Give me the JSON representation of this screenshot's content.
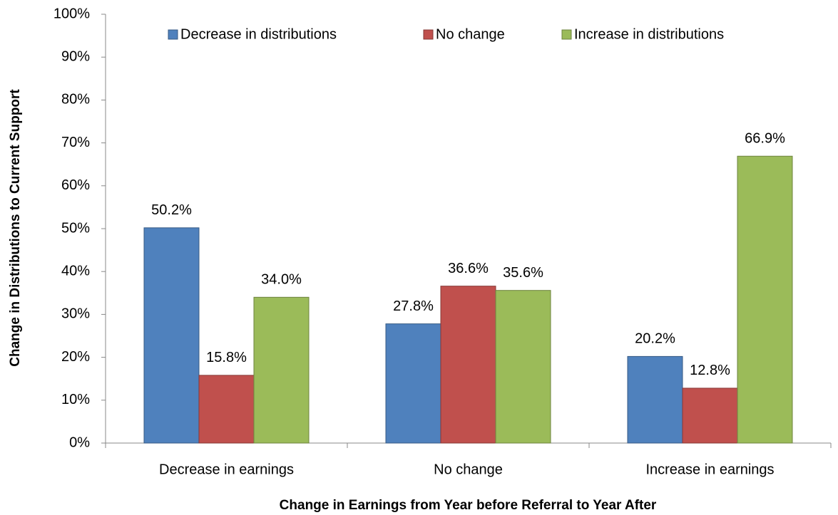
{
  "chart_data": {
    "type": "bar",
    "y_axis_label": "Change in Distributions to Current Support",
    "x_axis_label": "Change in Earnings from Year before Referral to Year After",
    "categories": [
      "Decrease in earnings",
      "No change",
      "Increase in earnings"
    ],
    "series": [
      {
        "name": "Decrease in distributions",
        "color": "#4f81bd",
        "values": [
          50.2,
          27.8,
          20.2
        ],
        "value_labels": [
          "50.2%",
          "27.8%",
          "20.2%"
        ]
      },
      {
        "name": "No change",
        "color": "#c0504d",
        "values": [
          15.8,
          36.6,
          12.8
        ],
        "value_labels": [
          "15.8%",
          "36.6%",
          "12.8%"
        ]
      },
      {
        "name": "Increase in distributions",
        "color": "#9bbb59",
        "values": [
          34.0,
          35.6,
          66.9
        ],
        "value_labels": [
          "34.0%",
          "35.6%",
          "66.9%"
        ]
      }
    ],
    "ylim": [
      0,
      100
    ],
    "yticks": [
      {
        "value": 0,
        "label": "0%"
      },
      {
        "value": 10,
        "label": "10%"
      },
      {
        "value": 20,
        "label": "20%"
      },
      {
        "value": 30,
        "label": "30%"
      },
      {
        "value": 40,
        "label": "40%"
      },
      {
        "value": 50,
        "label": "50%"
      },
      {
        "value": 60,
        "label": "60%"
      },
      {
        "value": 70,
        "label": "70%"
      },
      {
        "value": 80,
        "label": "80%"
      },
      {
        "value": 90,
        "label": "90%"
      },
      {
        "value": 100,
        "label": "100%"
      }
    ],
    "legend": "top",
    "grid": false
  }
}
